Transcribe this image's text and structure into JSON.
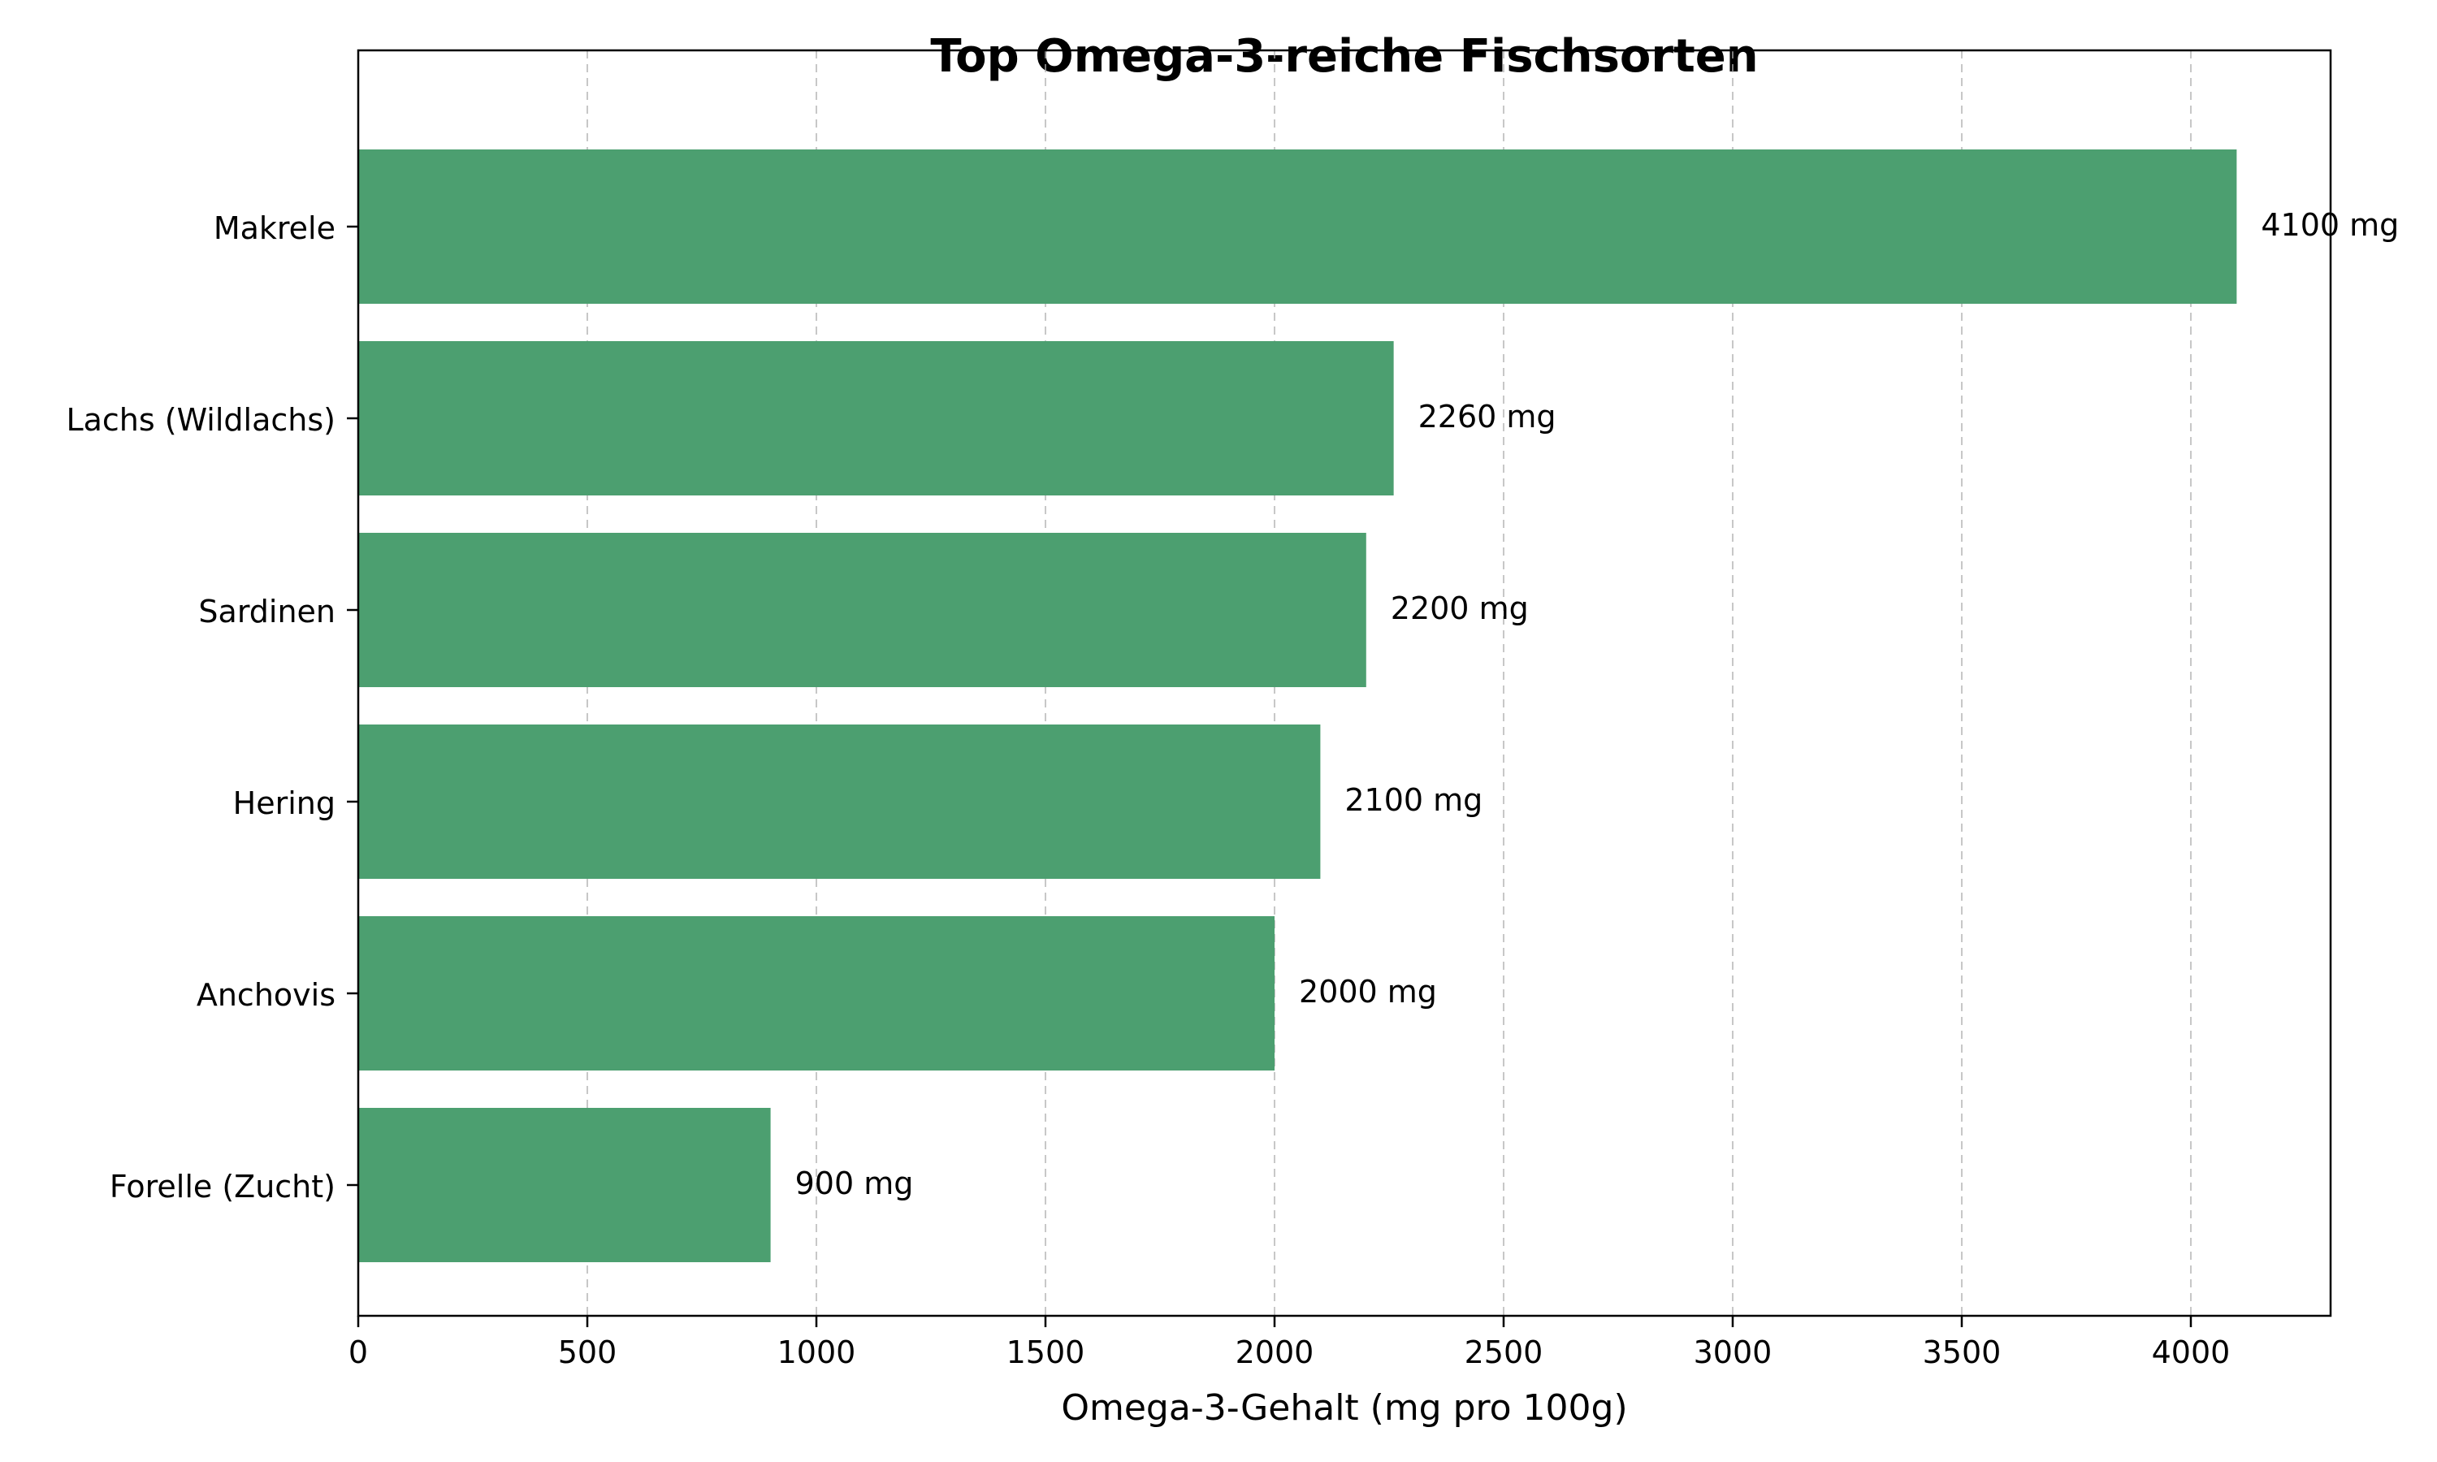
{
  "chart_data": {
    "type": "bar",
    "orientation": "horizontal",
    "title": "Top Omega-3-reiche Fischsorten",
    "xlabel": "Omega-3-Gehalt (mg pro 100g)",
    "ylabel": "",
    "categories": [
      "Makrele",
      "Lachs (Wildlachs)",
      "Sardinen",
      "Hering",
      "Anchovis",
      "Forelle (Zucht)"
    ],
    "values": [
      4100,
      2260,
      2200,
      2100,
      2000,
      900
    ],
    "data_labels": [
      "4100 mg",
      "2260 mg",
      "2200 mg",
      "2100 mg",
      "2000 mg",
      "900 mg"
    ],
    "xlim": [
      0,
      4305
    ],
    "xticks": [
      0,
      500,
      1000,
      1500,
      2000,
      2500,
      3000,
      3500,
      4000
    ],
    "xtick_labels": [
      "0",
      "500",
      "1000",
      "1500",
      "2000",
      "2500",
      "3000",
      "3500",
      "4000"
    ],
    "grid": "x-axis, dashed",
    "legend": "none",
    "bar_color": "#4c9f70"
  }
}
